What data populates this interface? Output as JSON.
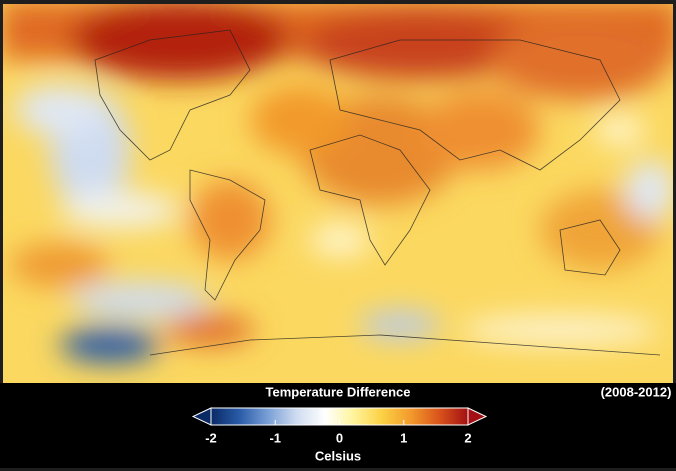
{
  "legend": {
    "title": "Temperature Difference",
    "period": "(2008-2012)",
    "unit": "Celsius",
    "range": [
      -2,
      2
    ],
    "ticks": [
      -2,
      -1,
      0,
      1,
      2
    ],
    "colors": [
      "#0a2a66",
      "#2a5ca8",
      "#7aa0d6",
      "#cfdcf0",
      "#ffffff",
      "#fff49a",
      "#fbd044",
      "#f29a2c",
      "#d9531b",
      "#a30f12"
    ]
  }
}
